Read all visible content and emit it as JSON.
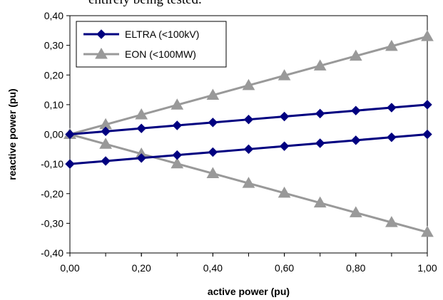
{
  "page": {
    "clipped_top_text": "entirely being tested."
  },
  "chart_data": {
    "type": "line",
    "title": "",
    "xlabel": "active power (pu)",
    "ylabel": "reactive power (pu)",
    "xlim": [
      0,
      1
    ],
    "ylim": [
      -0.4,
      0.4
    ],
    "x_ticks": [
      "0,00",
      "0,20",
      "0,40",
      "0,60",
      "0,80",
      "1,00"
    ],
    "y_ticks": [
      "0,40",
      "0,30",
      "0,20",
      "0,10",
      "0,00",
      "-0,10",
      "-0,20",
      "-0,30",
      "-0,40"
    ],
    "grid": false,
    "legend_position": "top-left",
    "series": [
      {
        "name": "ELTRA (<100kV)",
        "color": "#000080",
        "marker": "diamond",
        "segments": [
          {
            "x": [
              0,
              0.1,
              0.2,
              0.3,
              0.4,
              0.5,
              0.6,
              0.7,
              0.8,
              0.9,
              1.0
            ],
            "y": [
              0,
              0.01,
              0.02,
              0.03,
              0.04,
              0.05,
              0.06,
              0.07,
              0.08,
              0.09,
              0.1
            ]
          },
          {
            "x": [
              0,
              0.1,
              0.2,
              0.3,
              0.4,
              0.5,
              0.6,
              0.7,
              0.8,
              0.9,
              1.0
            ],
            "y": [
              -0.1,
              -0.09,
              -0.08,
              -0.07,
              -0.06,
              -0.05,
              -0.04,
              -0.03,
              -0.02,
              -0.01,
              0
            ]
          }
        ]
      },
      {
        "name": "EON (<100MW)",
        "color": "#999999",
        "marker": "triangle",
        "segments": [
          {
            "x": [
              0,
              0.1,
              0.2,
              0.3,
              0.4,
              0.5,
              0.6,
              0.7,
              0.8,
              0.9,
              1.0
            ],
            "y": [
              0,
              0.033,
              0.066,
              0.099,
              0.132,
              0.165,
              0.198,
              0.231,
              0.264,
              0.297,
              0.33
            ]
          },
          {
            "x": [
              0,
              0.1,
              0.2,
              0.3,
              0.4,
              0.5,
              0.6,
              0.7,
              0.8,
              0.9,
              1.0
            ],
            "y": [
              0,
              -0.033,
              -0.066,
              -0.099,
              -0.132,
              -0.165,
              -0.198,
              -0.231,
              -0.264,
              -0.297,
              -0.33
            ]
          }
        ]
      }
    ]
  }
}
